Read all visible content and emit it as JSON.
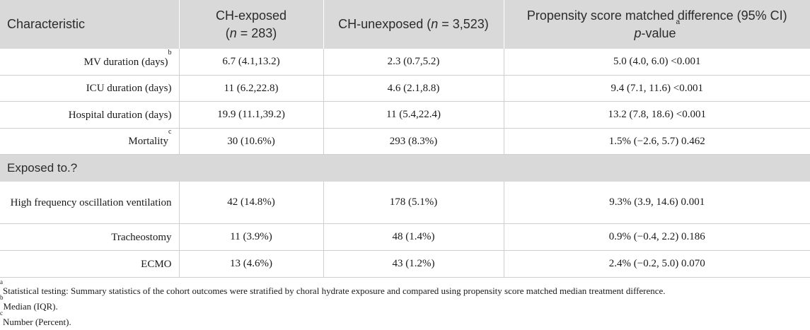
{
  "header": {
    "characteristic": "Characteristic",
    "ch_exposed_name": "CH-exposed",
    "ch_exposed_n_open": "(",
    "ch_exposed_n_var": "n",
    "ch_exposed_n_val": " = 283)",
    "ch_unexposed_name": "CH-unexposed (",
    "ch_unexposed_n_var": "n",
    "ch_unexposed_n_val": " = 3,523)",
    "psm_line1": "Propensity score matched difference (95% CI)",
    "psm_p": "p",
    "psm_value": "-value",
    "psm_sup": "a"
  },
  "rows": [
    {
      "label": "MV duration (days)",
      "sup": "b",
      "exposed": "6.7 (4.1,13.2)",
      "unexposed": "2.3 (0.7,5.2)",
      "difference": "5.0 (4.0, 6.0) <0.001"
    },
    {
      "label": "ICU duration (days)",
      "sup": "",
      "exposed": "11 (6.2,22.8)",
      "unexposed": "4.6 (2.1,8.8)",
      "difference": "9.4 (7.1, 11.6) <0.001"
    },
    {
      "label": "Hospital duration (days)",
      "sup": "",
      "exposed": "19.9 (11.1,39.2)",
      "unexposed": "11 (5.4,22.4)",
      "difference": "13.2 (7.8, 18.6) <0.001"
    },
    {
      "label": "Mortality",
      "sup": "c",
      "exposed": "30 (10.6%)",
      "unexposed": "293 (8.3%)",
      "difference": "1.5% (−2.6, 5.7) 0.462"
    }
  ],
  "section": {
    "label": "Exposed to.?"
  },
  "exposure_rows": [
    {
      "label": "High frequency oscillation ventilation",
      "exposed": "42 (14.8%)",
      "unexposed": "178 (5.1%)",
      "difference": "9.3% (3.9, 14.6) 0.001"
    },
    {
      "label": "Tracheostomy",
      "exposed": "11 (3.9%)",
      "unexposed": "48 (1.4%)",
      "difference": "0.9% (−0.4, 2.2) 0.186"
    },
    {
      "label": "ECMO",
      "exposed": "13 (4.6%)",
      "unexposed": "43 (1.2%)",
      "difference": "2.4% (−0.2, 5.0) 0.070"
    }
  ],
  "footnotes": [
    {
      "mark": "a",
      "text": "Statistical testing: Summary statistics of the cohort outcomes were stratified by choral hydrate exposure and compared using propensity score matched median treatment difference."
    },
    {
      "mark": "b",
      "text": "Median (IQR)."
    },
    {
      "mark": "c",
      "text": "Number (Percent)."
    }
  ]
}
